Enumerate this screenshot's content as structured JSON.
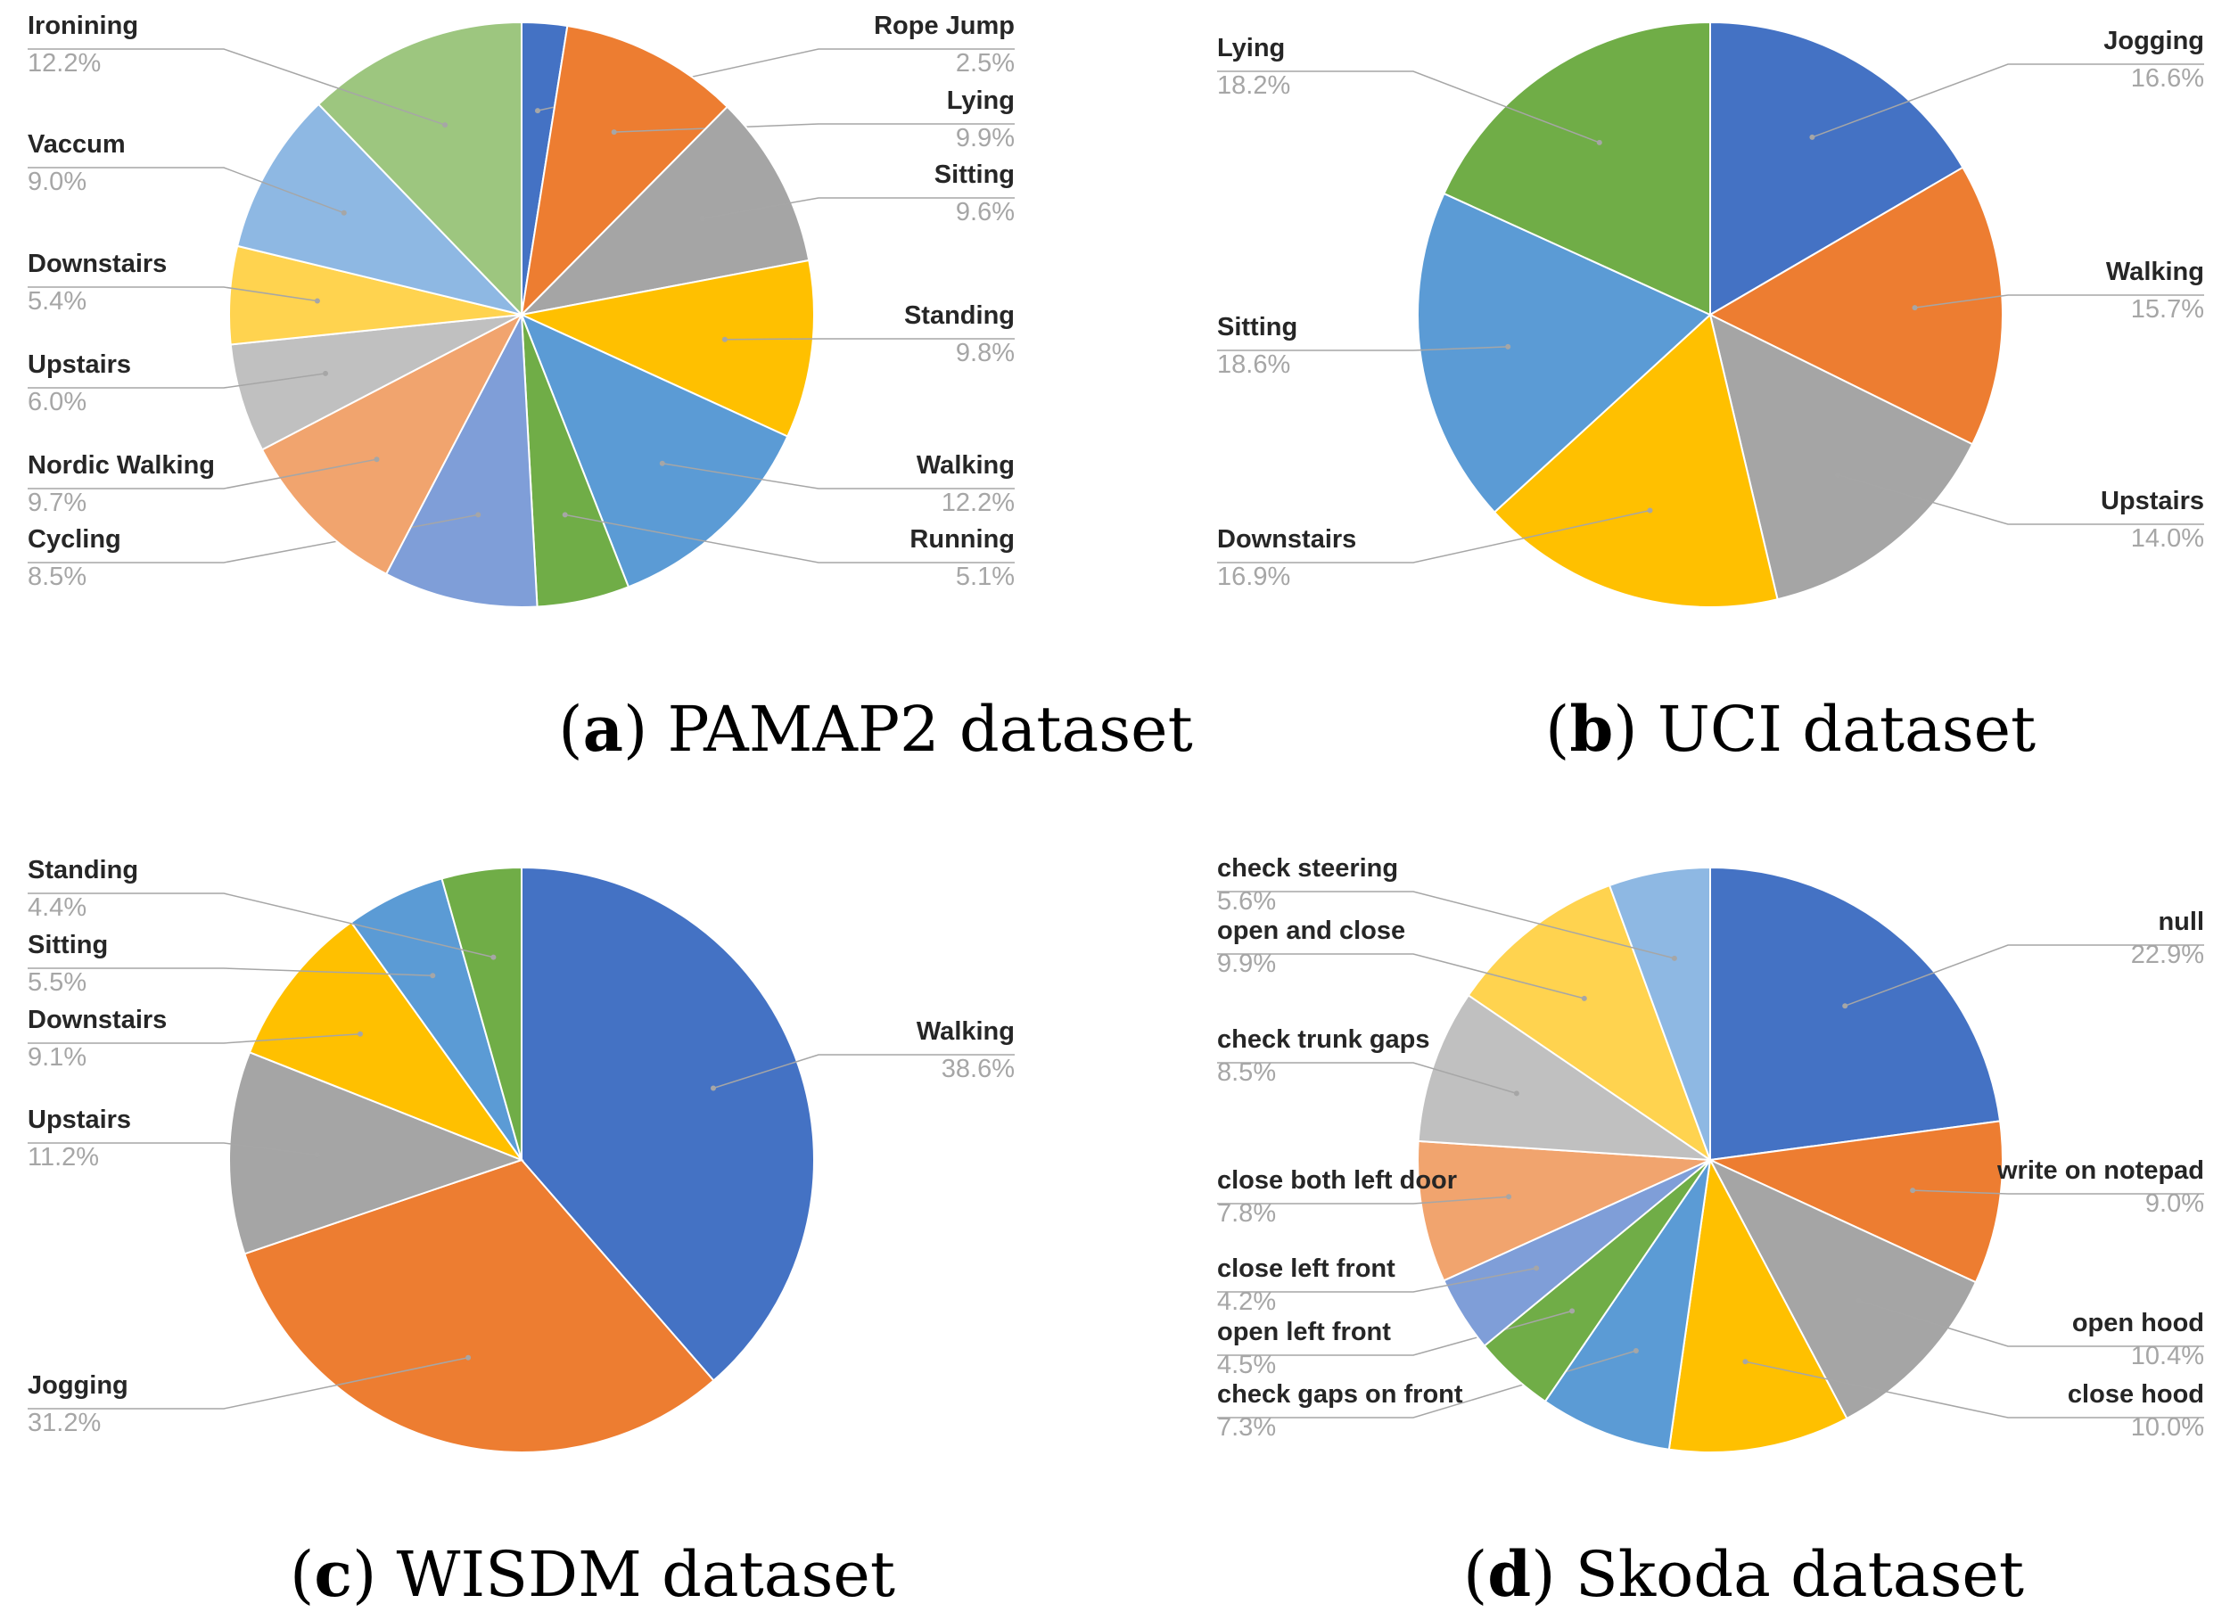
{
  "chart_data": [
    {
      "type": "pie",
      "caption_letter": "a",
      "caption_text": "PAMAP2 dataset",
      "slices": [
        {
          "label": "Rope Jump",
          "value": 2.5,
          "display": "2.5%",
          "color": "#4472c4"
        },
        {
          "label": "Lying",
          "value": 9.9,
          "display": "9.9%",
          "color": "#ed7d31"
        },
        {
          "label": "Sitting",
          "value": 9.6,
          "display": "9.6%",
          "color": "#a5a5a5"
        },
        {
          "label": "Standing",
          "value": 9.8,
          "display": "9.8%",
          "color": "#ffc000"
        },
        {
          "label": "Walking",
          "value": 12.2,
          "display": "12.2%",
          "color": "#5b9bd5"
        },
        {
          "label": "Running",
          "value": 5.1,
          "display": "5.1%",
          "color": "#70ad47"
        },
        {
          "label": "Cycling",
          "value": 8.5,
          "display": "8.5%",
          "color": "#7f9ed8"
        },
        {
          "label": "Nordic Walking",
          "value": 9.7,
          "display": "9.7%",
          "color": "#f1a46e"
        },
        {
          "label": "Upstairs",
          "value": 6.0,
          "display": "6.0%",
          "color": "#c0c0c0"
        },
        {
          "label": "Downstairs",
          "value": 5.4,
          "display": "5.4%",
          "color": "#ffd34f"
        },
        {
          "label": "Vaccum",
          "value": 9.0,
          "display": "9.0%",
          "color": "#8eb8e3"
        },
        {
          "label": "Ironining",
          "value": 12.2,
          "display": "12.2%",
          "color": "#9dc67f"
        }
      ]
    },
    {
      "type": "pie",
      "caption_letter": "b",
      "caption_text": "UCI dataset",
      "slices": [
        {
          "label": "Jogging",
          "value": 16.6,
          "display": "16.6%",
          "color": "#4472c4"
        },
        {
          "label": "Walking",
          "value": 15.7,
          "display": "15.7%",
          "color": "#ed7d31"
        },
        {
          "label": "Upstairs",
          "value": 14.0,
          "display": "14.0%",
          "color": "#a5a5a5"
        },
        {
          "label": "Downstairs",
          "value": 16.9,
          "display": "16.9%",
          "color": "#ffc000"
        },
        {
          "label": "Sitting",
          "value": 18.6,
          "display": "18.6%",
          "color": "#5b9bd5"
        },
        {
          "label": "Lying",
          "value": 18.2,
          "display": "18.2%",
          "color": "#70ad47"
        }
      ]
    },
    {
      "type": "pie",
      "caption_letter": "c",
      "caption_text": "WISDM dataset",
      "slices": [
        {
          "label": "Walking",
          "value": 38.6,
          "display": "38.6%",
          "color": "#4472c4"
        },
        {
          "label": "Jogging",
          "value": 31.2,
          "display": "31.2%",
          "color": "#ed7d31"
        },
        {
          "label": "Upstairs",
          "value": 11.2,
          "display": "11.2%",
          "color": "#a5a5a5"
        },
        {
          "label": "Downstairs",
          "value": 9.1,
          "display": "9.1%",
          "color": "#ffc000"
        },
        {
          "label": "Sitting",
          "value": 5.5,
          "display": "5.5%",
          "color": "#5b9bd5"
        },
        {
          "label": "Standing",
          "value": 4.4,
          "display": "4.4%",
          "color": "#70ad47"
        }
      ]
    },
    {
      "type": "pie",
      "caption_letter": "d",
      "caption_text": "Skoda dataset",
      "slices": [
        {
          "label": "null",
          "value": 22.9,
          "display": "22.9%",
          "color": "#4472c4"
        },
        {
          "label": "write on notepad",
          "value": 9.0,
          "display": "9.0%",
          "color": "#ed7d31"
        },
        {
          "label": "open hood",
          "value": 10.4,
          "display": "10.4%",
          "color": "#a5a5a5"
        },
        {
          "label": "close hood",
          "value": 10.0,
          "display": "10.0%",
          "color": "#ffc000"
        },
        {
          "label": "check gaps on front",
          "value": 7.3,
          "display": "7.3%",
          "color": "#5b9bd5"
        },
        {
          "label": "open left front",
          "value": 4.5,
          "display": "4.5%",
          "color": "#70ad47"
        },
        {
          "label": "close left front",
          "value": 4.2,
          "display": "4.2%",
          "color": "#7f9ed8"
        },
        {
          "label": "close both left door",
          "value": 7.8,
          "display": "7.8%",
          "color": "#f1a46e"
        },
        {
          "label": "check trunk gaps",
          "value": 8.5,
          "display": "8.5%",
          "color": "#c0c0c0"
        },
        {
          "label": "open and close",
          "value": 9.9,
          "display": "9.9%",
          "color": "#ffd34f"
        },
        {
          "label": "check steering",
          "value": 5.6,
          "display": "5.6%",
          "color": "#8eb8e3"
        }
      ]
    }
  ]
}
